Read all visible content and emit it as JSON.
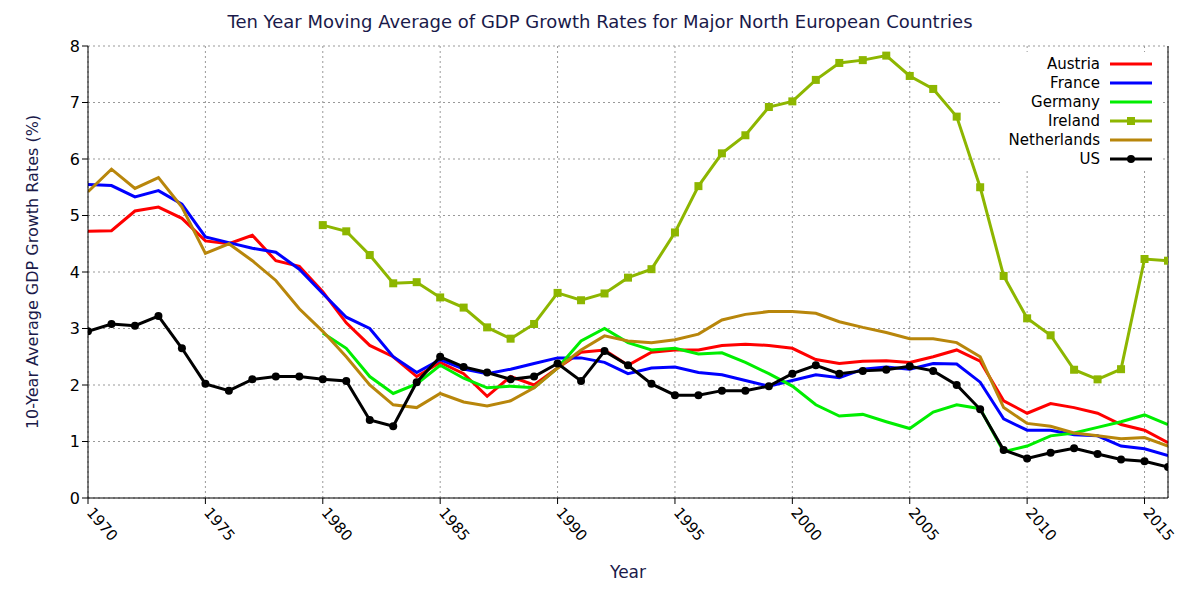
{
  "chart_data": {
    "type": "line",
    "title": "Ten Year Moving Average of GDP Growth Rates for Major North European Countries",
    "x_label": "Year",
    "y_label": "10-Year Average GDP Growth Rates (%)",
    "x": [
      1970,
      1971,
      1972,
      1973,
      1974,
      1975,
      1976,
      1977,
      1978,
      1979,
      1980,
      1981,
      1982,
      1983,
      1984,
      1985,
      1986,
      1987,
      1988,
      1989,
      1990,
      1991,
      1992,
      1993,
      1994,
      1995,
      1996,
      1997,
      1998,
      1999,
      2000,
      2001,
      2002,
      2003,
      2004,
      2005,
      2006,
      2007,
      2008,
      2009,
      2010,
      2011,
      2012,
      2013,
      2014,
      2015,
      2016
    ],
    "xlim": [
      1970,
      2016
    ],
    "xticks": [
      1970,
      1975,
      1980,
      1985,
      1990,
      1995,
      2000,
      2005,
      2010,
      2015
    ],
    "ylim": [
      0,
      8
    ],
    "yticks": [
      0,
      1,
      2,
      3,
      4,
      5,
      6,
      7,
      8
    ],
    "grid": true,
    "legend": "top-right",
    "series": [
      {
        "name": "Austria",
        "color": "#ff0000",
        "marker": "none",
        "line_style": "solid",
        "values": [
          4.72,
          4.73,
          5.08,
          5.15,
          4.95,
          4.55,
          4.5,
          4.65,
          4.2,
          4.1,
          3.65,
          3.1,
          2.7,
          2.5,
          2.15,
          2.4,
          2.2,
          1.8,
          2.15,
          2.0,
          2.3,
          2.58,
          2.62,
          2.35,
          2.58,
          2.62,
          2.62,
          2.7,
          2.72,
          2.7,
          2.65,
          2.45,
          2.38,
          2.42,
          2.43,
          2.4,
          2.5,
          2.62,
          2.42,
          1.72,
          1.5,
          1.67,
          1.6,
          1.5,
          1.3,
          1.2,
          0.98
        ]
      },
      {
        "name": "France",
        "color": "#0000ff",
        "marker": "none",
        "line_style": "solid",
        "values": [
          5.55,
          5.53,
          5.33,
          5.44,
          5.2,
          4.62,
          4.52,
          4.42,
          4.35,
          4.05,
          3.62,
          3.2,
          3.0,
          2.5,
          2.22,
          2.45,
          2.28,
          2.2,
          2.28,
          2.38,
          2.48,
          2.48,
          2.4,
          2.2,
          2.3,
          2.32,
          2.22,
          2.18,
          2.08,
          1.98,
          2.08,
          2.18,
          2.13,
          2.28,
          2.32,
          2.28,
          2.38,
          2.37,
          2.05,
          1.4,
          1.2,
          1.2,
          1.12,
          1.1,
          0.92,
          0.87,
          0.75
        ]
      },
      {
        "name": "Germany",
        "color": "#00ee00",
        "marker": "none",
        "line_style": "solid",
        "values": [
          null,
          null,
          null,
          null,
          null,
          null,
          null,
          null,
          null,
          null,
          2.92,
          2.65,
          2.15,
          1.85,
          2.02,
          2.35,
          2.12,
          1.95,
          1.98,
          1.95,
          2.3,
          2.78,
          3.0,
          2.75,
          2.62,
          2.65,
          2.55,
          2.57,
          2.4,
          2.2,
          1.98,
          1.65,
          1.45,
          1.48,
          1.35,
          1.23,
          1.52,
          1.65,
          1.58,
          0.82,
          0.92,
          1.1,
          1.15,
          1.25,
          1.35,
          1.47,
          1.3
        ]
      },
      {
        "name": "Ireland",
        "color": "#8db600",
        "marker": "square",
        "line_style": "solid",
        "values": [
          null,
          null,
          null,
          null,
          null,
          null,
          null,
          null,
          null,
          null,
          4.83,
          4.72,
          4.3,
          3.8,
          3.82,
          3.55,
          3.37,
          3.02,
          2.82,
          3.08,
          3.63,
          3.5,
          3.62,
          3.9,
          4.05,
          4.7,
          5.52,
          6.1,
          6.42,
          6.92,
          7.02,
          7.4,
          7.7,
          7.75,
          7.83,
          7.47,
          7.24,
          6.75,
          5.5,
          3.93,
          3.18,
          2.88,
          2.27,
          2.1,
          2.28,
          4.23,
          4.2
        ]
      },
      {
        "name": "Netherlands",
        "color": "#b8860b",
        "marker": "none",
        "line_style": "solid",
        "values": [
          5.42,
          5.82,
          5.48,
          5.67,
          5.15,
          4.33,
          4.5,
          4.2,
          3.85,
          3.35,
          2.95,
          2.5,
          2.0,
          1.65,
          1.6,
          1.85,
          1.7,
          1.63,
          1.72,
          1.95,
          2.3,
          2.62,
          2.87,
          2.78,
          2.75,
          2.8,
          2.9,
          3.15,
          3.25,
          3.3,
          3.3,
          3.27,
          3.12,
          3.02,
          2.93,
          2.82,
          2.82,
          2.75,
          2.5,
          1.6,
          1.32,
          1.27,
          1.15,
          1.1,
          1.05,
          1.07,
          0.92
        ]
      },
      {
        "name": "US",
        "color": "#000000",
        "marker": "circle",
        "line_style": "solid",
        "values": [
          2.95,
          3.08,
          3.05,
          3.22,
          2.65,
          2.02,
          1.9,
          2.1,
          2.15,
          2.15,
          2.1,
          2.07,
          1.38,
          1.27,
          2.05,
          2.5,
          2.32,
          2.22,
          2.1,
          2.15,
          2.38,
          2.07,
          2.6,
          2.35,
          2.02,
          1.82,
          1.82,
          1.9,
          1.9,
          1.98,
          2.2,
          2.35,
          2.2,
          2.25,
          2.27,
          2.33,
          2.25,
          2.0,
          1.57,
          0.85,
          0.7,
          0.8,
          0.88,
          0.78,
          0.68,
          0.65,
          0.55
        ]
      }
    ]
  }
}
